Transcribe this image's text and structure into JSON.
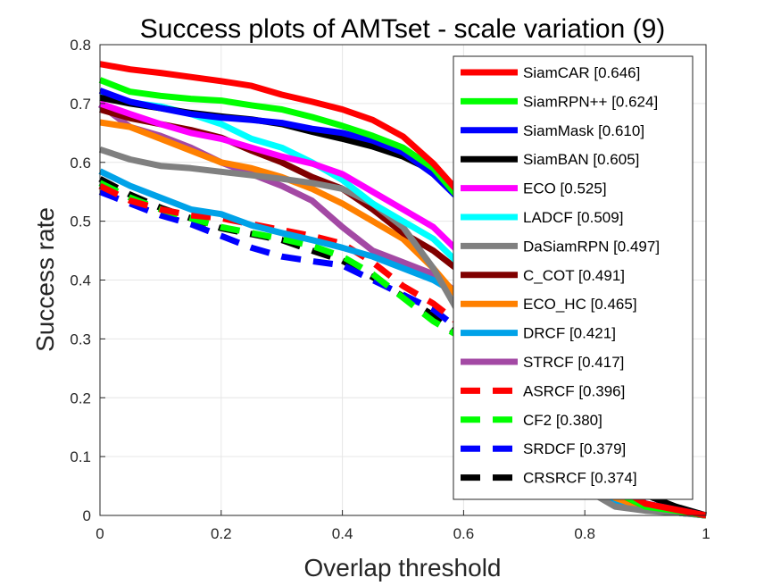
{
  "chart_data": {
    "type": "line",
    "title": "Success plots of AMTset - scale variation (9)",
    "xlabel": "Overlap threshold",
    "ylabel": "Success rate",
    "xlim": [
      0,
      1
    ],
    "ylim": [
      0,
      0.8
    ],
    "xticks": [
      "0",
      "0.2",
      "0.4",
      "0.6",
      "0.8",
      "1"
    ],
    "yticks": [
      "0",
      "0.1",
      "0.2",
      "0.3",
      "0.4",
      "0.5",
      "0.6",
      "0.7",
      "0.8"
    ],
    "grid": true,
    "legend_position": "top-right",
    "x": [
      0,
      0.05,
      0.1,
      0.15,
      0.2,
      0.25,
      0.3,
      0.35,
      0.4,
      0.45,
      0.5,
      0.55,
      0.6,
      0.65,
      0.7,
      0.75,
      0.8,
      0.85,
      0.9,
      0.95,
      1.0
    ],
    "series": [
      {
        "name": "SiamCAR [0.646]",
        "color": "#ff0000",
        "dash": false,
        "values": [
          0.767,
          0.758,
          0.752,
          0.745,
          0.738,
          0.73,
          0.715,
          0.703,
          0.69,
          0.672,
          0.644,
          0.598,
          0.54,
          0.46,
          0.36,
          0.23,
          0.12,
          0.05,
          0.02,
          0.01,
          0.0
        ]
      },
      {
        "name": "SiamRPN++ [0.624]",
        "color": "#00ff00",
        "dash": false,
        "values": [
          0.74,
          0.72,
          0.713,
          0.708,
          0.705,
          0.697,
          0.69,
          0.677,
          0.662,
          0.645,
          0.625,
          0.59,
          0.53,
          0.45,
          0.35,
          0.22,
          0.11,
          0.04,
          0.015,
          0.008,
          0.0
        ]
      },
      {
        "name": "SiamMask [0.610]",
        "color": "#0000ff",
        "dash": false,
        "values": [
          0.722,
          0.703,
          0.692,
          0.682,
          0.676,
          0.672,
          0.667,
          0.657,
          0.65,
          0.637,
          0.617,
          0.58,
          0.53,
          0.45,
          0.34,
          0.23,
          0.13,
          0.06,
          0.02,
          0.01,
          0.0
        ]
      },
      {
        "name": "SiamBAN [0.605]",
        "color": "#000000",
        "dash": false,
        "values": [
          0.71,
          0.7,
          0.692,
          0.684,
          0.678,
          0.673,
          0.665,
          0.652,
          0.64,
          0.627,
          0.61,
          0.585,
          0.545,
          0.48,
          0.39,
          0.28,
          0.17,
          0.09,
          0.035,
          0.015,
          0.0
        ]
      },
      {
        "name": "ECO [0.525]",
        "color": "#ff00ff",
        "dash": false,
        "values": [
          0.7,
          0.682,
          0.665,
          0.65,
          0.64,
          0.625,
          0.61,
          0.598,
          0.58,
          0.55,
          0.52,
          0.49,
          0.44,
          0.36,
          0.27,
          0.18,
          0.1,
          0.05,
          0.02,
          0.01,
          0.0
        ]
      },
      {
        "name": "LADCF [0.509]",
        "color": "#00ffff",
        "dash": false,
        "values": [
          0.712,
          0.702,
          0.695,
          0.682,
          0.665,
          0.64,
          0.625,
          0.6,
          0.57,
          0.53,
          0.5,
          0.47,
          0.42,
          0.35,
          0.27,
          0.18,
          0.1,
          0.05,
          0.02,
          0.01,
          0.0
        ]
      },
      {
        "name": "DaSiamRPN [0.497]",
        "color": "#808080",
        "dash": false,
        "values": [
          0.622,
          0.605,
          0.594,
          0.59,
          0.584,
          0.578,
          0.572,
          0.565,
          0.555,
          0.53,
          0.49,
          0.42,
          0.33,
          0.24,
          0.17,
          0.11,
          0.045,
          0.015,
          0.008,
          0.005,
          0.0
        ]
      },
      {
        "name": "C_COT [0.491]",
        "color": "#800000",
        "dash": false,
        "values": [
          0.69,
          0.675,
          0.665,
          0.655,
          0.642,
          0.62,
          0.6,
          0.575,
          0.555,
          0.52,
          0.48,
          0.45,
          0.41,
          0.34,
          0.26,
          0.17,
          0.09,
          0.04,
          0.015,
          0.008,
          0.0
        ]
      },
      {
        "name": "ECO_HC [0.465]",
        "color": "#ff8000",
        "dash": false,
        "values": [
          0.668,
          0.66,
          0.64,
          0.62,
          0.6,
          0.59,
          0.575,
          0.555,
          0.53,
          0.5,
          0.47,
          0.42,
          0.36,
          0.3,
          0.23,
          0.16,
          0.08,
          0.03,
          0.012,
          0.006,
          0.0
        ]
      },
      {
        "name": "DRCF [0.421]",
        "color": "#00a2e8",
        "dash": false,
        "values": [
          0.585,
          0.56,
          0.54,
          0.52,
          0.512,
          0.493,
          0.48,
          0.468,
          0.455,
          0.44,
          0.42,
          0.4,
          0.37,
          0.3,
          0.22,
          0.15,
          0.07,
          0.025,
          0.01,
          0.005,
          0.0
        ]
      },
      {
        "name": "STRCF [0.417]",
        "color": "#a349a4",
        "dash": false,
        "values": [
          0.698,
          0.66,
          0.645,
          0.625,
          0.6,
          0.58,
          0.56,
          0.535,
          0.49,
          0.45,
          0.43,
          0.41,
          0.37,
          0.3,
          0.23,
          0.16,
          0.09,
          0.04,
          0.015,
          0.008,
          0.0
        ]
      },
      {
        "name": "ASRCF [0.396]",
        "color": "#ff0000",
        "dash": true,
        "values": [
          0.56,
          0.535,
          0.52,
          0.51,
          0.505,
          0.495,
          0.485,
          0.475,
          0.462,
          0.43,
          0.39,
          0.36,
          0.32,
          0.26,
          0.19,
          0.12,
          0.07,
          0.03,
          0.012,
          0.006,
          0.0
        ]
      },
      {
        "name": "CF2 [0.380]",
        "color": "#00ff00",
        "dash": true,
        "values": [
          0.565,
          0.54,
          0.52,
          0.505,
          0.49,
          0.48,
          0.47,
          0.458,
          0.44,
          0.41,
          0.37,
          0.33,
          0.3,
          0.24,
          0.17,
          0.11,
          0.06,
          0.025,
          0.01,
          0.005,
          0.0
        ]
      },
      {
        "name": "SRDCF [0.379]",
        "color": "#0000ff",
        "dash": true,
        "values": [
          0.55,
          0.53,
          0.51,
          0.495,
          0.475,
          0.455,
          0.44,
          0.432,
          0.425,
          0.4,
          0.375,
          0.35,
          0.31,
          0.25,
          0.18,
          0.12,
          0.065,
          0.025,
          0.01,
          0.005,
          0.0
        ]
      },
      {
        "name": "CRSRCF [0.374]",
        "color": "#000000",
        "dash": true,
        "values": [
          0.572,
          0.545,
          0.523,
          0.505,
          0.488,
          0.478,
          0.468,
          0.45,
          0.433,
          0.405,
          0.372,
          0.34,
          0.3,
          0.24,
          0.17,
          0.11,
          0.06,
          0.025,
          0.01,
          0.005,
          0.0
        ]
      }
    ]
  }
}
